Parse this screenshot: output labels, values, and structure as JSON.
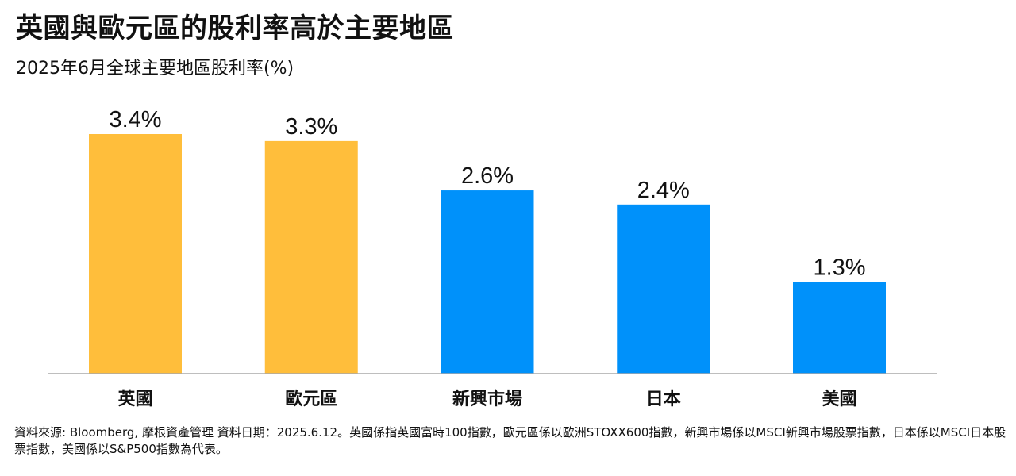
{
  "header": {
    "title": "英國與歐元區的股利率高於主要地區",
    "subtitle": "2025年6月全球主要地區股利率(%)"
  },
  "chart_data": {
    "type": "bar",
    "categories": [
      "英國",
      "歐元區",
      "新興市場",
      "日本",
      "美國"
    ],
    "values": [
      3.4,
      3.3,
      2.6,
      2.4,
      1.3
    ],
    "value_labels": [
      "3.4%",
      "3.3%",
      "2.6%",
      "2.4%",
      "1.3%"
    ],
    "colors": [
      "#FFBE3B",
      "#FFBE3B",
      "#0091FA",
      "#0091FA",
      "#0091FA"
    ],
    "ylim": [
      0,
      3.4
    ],
    "grid": false
  },
  "footnote": {
    "text": "資料來源: Bloomberg, 摩根資產管理 資料日期：2025.6.12。英國係指英國富時100指數，歐元區係以歐洲STOXX600指數，新興市場係以MSCI新興市場股票指數，日本係以MSCI日本股票指數，美國係以S&P500指數為代表。"
  }
}
